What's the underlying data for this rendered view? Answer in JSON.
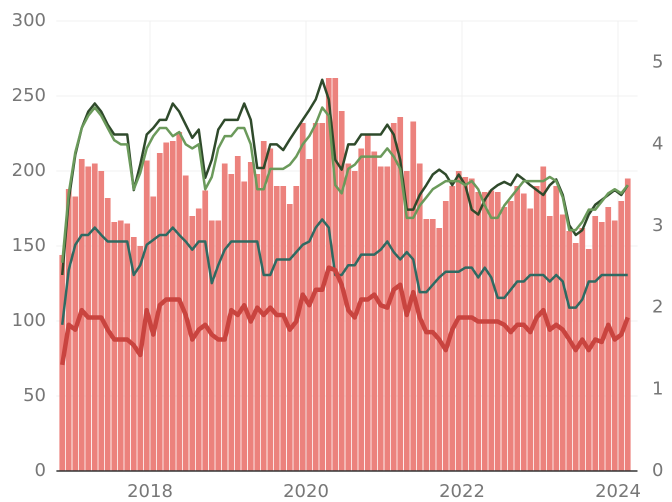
{
  "chart_data": {
    "type": "bar_line",
    "x": [
      2016.875,
      2016.958,
      2017.042,
      2017.125,
      2017.208,
      2017.292,
      2017.375,
      2017.458,
      2017.542,
      2017.625,
      2017.708,
      2017.792,
      2017.875,
      2017.958,
      2018.042,
      2018.125,
      2018.208,
      2018.292,
      2018.375,
      2018.458,
      2018.542,
      2018.625,
      2018.708,
      2018.792,
      2018.875,
      2018.958,
      2019.042,
      2019.125,
      2019.208,
      2019.292,
      2019.375,
      2019.458,
      2019.542,
      2019.625,
      2019.708,
      2019.792,
      2019.875,
      2019.958,
      2020.042,
      2020.125,
      2020.208,
      2020.292,
      2020.375,
      2020.458,
      2020.542,
      2020.625,
      2020.708,
      2020.792,
      2020.875,
      2020.958,
      2021.042,
      2021.125,
      2021.208,
      2021.292,
      2021.375,
      2021.458,
      2021.542,
      2021.625,
      2021.708,
      2021.792,
      2021.875,
      2021.958,
      2022.042,
      2022.125,
      2022.208,
      2022.292,
      2022.375,
      2022.458,
      2022.542,
      2022.625,
      2022.708,
      2022.792,
      2022.875,
      2022.958,
      2023.042,
      2023.125,
      2023.208,
      2023.292,
      2023.375,
      2023.458,
      2023.542,
      2023.625,
      2023.708,
      2023.792,
      2023.875,
      2023.958,
      2024.042,
      2024.125
    ],
    "xlim": [
      2016.8,
      2024.25
    ],
    "xticks": [
      2018,
      2020,
      2022,
      2024
    ],
    "ylim": [
      0,
      300
    ],
    "yticks": [
      0,
      50,
      100,
      150,
      200,
      250,
      300
    ],
    "y2lim": [
      0,
      5.51
    ],
    "y2ticks": [
      0,
      1,
      2,
      3,
      4,
      5
    ],
    "grid": true,
    "series": [
      {
        "kind": "bar",
        "color": "#ec827d",
        "values": [
          144,
          188,
          183,
          208,
          203,
          205,
          200,
          182,
          166,
          167,
          165,
          156,
          150,
          207,
          183,
          212,
          219,
          220,
          226,
          197,
          170,
          175,
          187,
          167,
          167,
          205,
          198,
          210,
          193,
          206,
          198,
          220,
          215,
          190,
          190,
          178,
          190,
          232,
          208,
          232,
          232,
          262,
          262,
          240,
          205,
          200,
          215,
          224,
          213,
          203,
          203,
          232,
          236,
          200,
          233,
          205,
          168,
          168,
          162,
          180,
          190,
          200,
          196,
          195,
          186,
          186,
          187,
          186,
          176,
          180,
          190,
          185,
          175,
          190,
          203,
          170,
          190,
          171,
          160,
          152,
          162,
          148,
          170,
          166,
          176,
          167,
          180,
          195
        ]
      },
      {
        "kind": "line",
        "axis": "y2",
        "color": "#2f4a2b",
        "width": 2.5,
        "values": [
          2.4,
          3.32,
          3.87,
          4.2,
          4.4,
          4.5,
          4.4,
          4.24,
          4.12,
          4.12,
          4.12,
          3.44,
          3.75,
          4.12,
          4.2,
          4.3,
          4.3,
          4.5,
          4.4,
          4.24,
          4.08,
          4.18,
          3.59,
          3.81,
          4.18,
          4.3,
          4.3,
          4.3,
          4.5,
          4.3,
          3.71,
          3.71,
          4.0,
          4.0,
          3.93,
          4.06,
          4.18,
          4.3,
          4.42,
          4.55,
          4.79,
          4.55,
          3.81,
          3.69,
          4.0,
          4.0,
          4.12,
          4.12,
          4.12,
          4.12,
          4.24,
          4.12,
          3.81,
          3.2,
          3.2,
          3.38,
          3.5,
          3.63,
          3.69,
          3.63,
          3.5,
          3.63,
          3.5,
          3.2,
          3.14,
          3.32,
          3.44,
          3.5,
          3.54,
          3.5,
          3.63,
          3.57,
          3.5,
          3.44,
          3.38,
          3.5,
          3.57,
          3.38,
          3.01,
          2.89,
          2.95,
          3.14,
          3.26,
          3.32,
          3.38,
          3.44,
          3.38,
          3.5
        ]
      },
      {
        "kind": "line",
        "axis": "y2",
        "color": "#6b9a5b",
        "width": 2.5,
        "values": [
          2.55,
          3.4,
          3.9,
          4.2,
          4.35,
          4.45,
          4.35,
          4.2,
          4.05,
          4.0,
          4.0,
          3.45,
          3.65,
          3.95,
          4.1,
          4.2,
          4.2,
          4.1,
          4.15,
          4.0,
          3.95,
          4.0,
          3.45,
          3.6,
          3.95,
          4.1,
          4.1,
          4.2,
          4.2,
          4.0,
          3.45,
          3.45,
          3.7,
          3.7,
          3.7,
          3.75,
          3.85,
          4.0,
          4.1,
          4.25,
          4.45,
          4.35,
          3.5,
          3.4,
          3.7,
          3.75,
          3.85,
          3.85,
          3.85,
          3.85,
          3.95,
          3.85,
          3.7,
          3.1,
          3.1,
          3.25,
          3.35,
          3.45,
          3.5,
          3.55,
          3.55,
          3.55,
          3.5,
          3.55,
          3.45,
          3.25,
          3.1,
          3.1,
          3.25,
          3.35,
          3.45,
          3.55,
          3.55,
          3.55,
          3.55,
          3.6,
          3.55,
          3.35,
          2.95,
          2.95,
          3.05,
          3.2,
          3.2,
          3.3,
          3.4,
          3.45,
          3.4,
          3.5
        ]
      },
      {
        "kind": "line",
        "axis": "y2",
        "color": "#2f6a62",
        "width": 2.5,
        "values": [
          1.79,
          2.46,
          2.77,
          2.89,
          2.89,
          2.98,
          2.89,
          2.81,
          2.81,
          2.81,
          2.81,
          2.4,
          2.52,
          2.77,
          2.83,
          2.89,
          2.89,
          2.98,
          2.89,
          2.81,
          2.71,
          2.81,
          2.81,
          2.3,
          2.52,
          2.71,
          2.81,
          2.81,
          2.81,
          2.81,
          2.81,
          2.4,
          2.4,
          2.59,
          2.59,
          2.59,
          2.68,
          2.77,
          2.81,
          2.98,
          3.08,
          2.98,
          2.4,
          2.4,
          2.52,
          2.52,
          2.65,
          2.65,
          2.65,
          2.71,
          2.81,
          2.68,
          2.59,
          2.68,
          2.59,
          2.19,
          2.19,
          2.28,
          2.37,
          2.44,
          2.44,
          2.44,
          2.49,
          2.49,
          2.37,
          2.49,
          2.37,
          2.12,
          2.12,
          2.22,
          2.32,
          2.32,
          2.4,
          2.4,
          2.4,
          2.32,
          2.4,
          2.32,
          2.0,
          2.0,
          2.1,
          2.32,
          2.32,
          2.4,
          2.4,
          2.4,
          2.4,
          2.4
        ]
      },
      {
        "kind": "line",
        "axis": "y2",
        "color": "#c9443f",
        "width": 4.5,
        "values": [
          1.3,
          1.79,
          1.73,
          1.97,
          1.88,
          1.88,
          1.88,
          1.73,
          1.61,
          1.61,
          1.61,
          1.54,
          1.42,
          1.97,
          1.67,
          2.03,
          2.1,
          2.1,
          2.1,
          1.91,
          1.61,
          1.73,
          1.79,
          1.67,
          1.61,
          1.61,
          1.97,
          1.91,
          2.03,
          1.83,
          2.0,
          1.91,
          2.0,
          1.91,
          1.91,
          1.73,
          1.83,
          2.16,
          2.03,
          2.22,
          2.22,
          2.49,
          2.46,
          2.28,
          1.97,
          1.88,
          2.1,
          2.1,
          2.16,
          2.03,
          2.0,
          2.22,
          2.28,
          1.91,
          2.19,
          1.88,
          1.7,
          1.7,
          1.61,
          1.48,
          1.73,
          1.88,
          1.88,
          1.88,
          1.83,
          1.83,
          1.83,
          1.83,
          1.79,
          1.7,
          1.79,
          1.79,
          1.7,
          1.88,
          1.97,
          1.73,
          1.79,
          1.73,
          1.61,
          1.48,
          1.61,
          1.48,
          1.61,
          1.58,
          1.79,
          1.61,
          1.67,
          1.88
        ]
      }
    ]
  }
}
